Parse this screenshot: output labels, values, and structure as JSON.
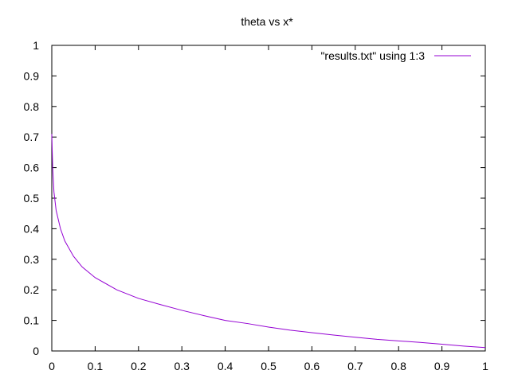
{
  "chart_data": {
    "type": "line",
    "title": "theta vs x*",
    "xlabel": "",
    "ylabel": "",
    "xlim": [
      0,
      1
    ],
    "ylim": [
      0,
      1
    ],
    "x_ticks": [
      "0",
      "0.1",
      "0.2",
      "0.3",
      "0.4",
      "0.5",
      "0.6",
      "0.7",
      "0.8",
      "0.9",
      "1"
    ],
    "y_ticks": [
      "0",
      "0.1",
      "0.2",
      "0.3",
      "0.4",
      "0.5",
      "0.6",
      "0.7",
      "0.8",
      "0.9",
      "1"
    ],
    "grid": false,
    "legend_position": "top-right",
    "series": [
      {
        "name": "\"results.txt\" using 1:3",
        "color": "#9400d3",
        "x": [
          0,
          0.002,
          0.005,
          0.01,
          0.02,
          0.03,
          0.05,
          0.07,
          0.1,
          0.15,
          0.2,
          0.25,
          0.3,
          0.35,
          0.4,
          0.45,
          0.5,
          0.55,
          0.6,
          0.65,
          0.7,
          0.75,
          0.8,
          0.85,
          0.9,
          0.95,
          1.0
        ],
        "y": [
          0.71,
          0.6,
          0.52,
          0.46,
          0.4,
          0.36,
          0.31,
          0.275,
          0.24,
          0.2,
          0.172,
          0.152,
          0.133,
          0.116,
          0.1,
          0.09,
          0.078,
          0.068,
          0.06,
          0.052,
          0.045,
          0.038,
          0.033,
          0.028,
          0.022,
          0.016,
          0.011
        ]
      }
    ]
  }
}
